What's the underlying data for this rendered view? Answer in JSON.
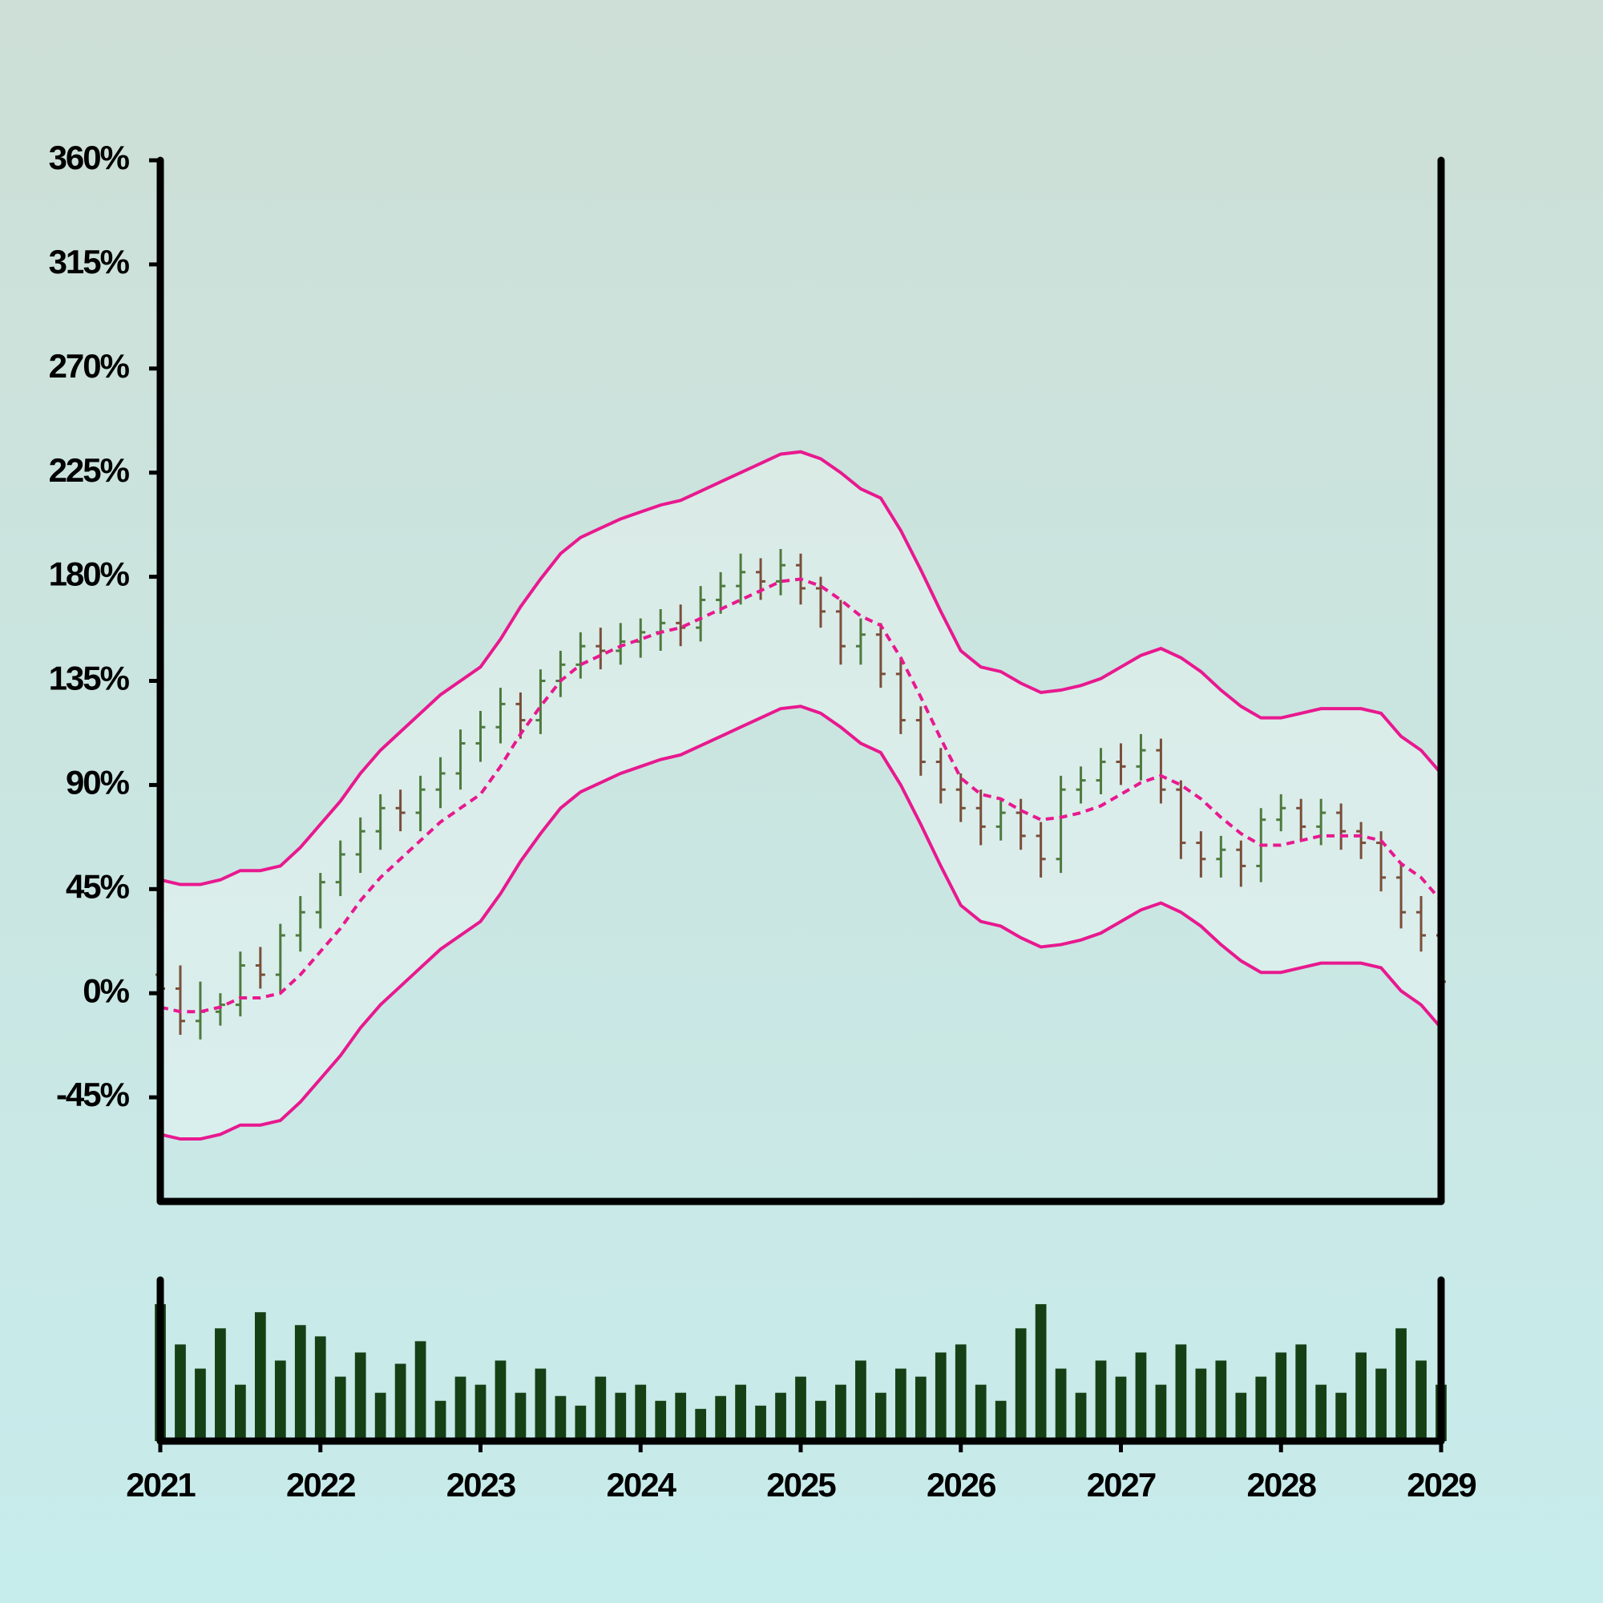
{
  "chart_data": {
    "type": "ohlc",
    "x": [
      2021,
      2021.125,
      2021.25,
      2021.375,
      2021.5,
      2021.625,
      2021.75,
      2021.875,
      2022,
      2022.125,
      2022.25,
      2022.375,
      2022.5,
      2022.625,
      2022.75,
      2022.875,
      2023,
      2023.125,
      2023.25,
      2023.375,
      2023.5,
      2023.625,
      2023.75,
      2023.875,
      2024,
      2024.125,
      2024.25,
      2024.375,
      2024.5,
      2024.625,
      2024.75,
      2024.875,
      2025,
      2025.125,
      2025.25,
      2025.375,
      2025.5,
      2025.625,
      2025.75,
      2025.875,
      2026,
      2026.125,
      2026.25,
      2026.375,
      2026.5,
      2026.625,
      2026.75,
      2026.875,
      2027,
      2027.125,
      2027.25,
      2027.375,
      2027.5,
      2027.625,
      2027.75,
      2027.875,
      2028,
      2028.125,
      2028.25,
      2028.375,
      2028.5,
      2028.625,
      2028.75,
      2028.875,
      2029
    ],
    "open": [
      8,
      2,
      -12,
      -8,
      -5,
      12,
      8,
      25,
      35,
      48,
      60,
      70,
      80,
      78,
      88,
      95,
      108,
      115,
      125,
      118,
      135,
      142,
      150,
      148,
      152,
      156,
      160,
      158,
      170,
      176,
      182,
      178,
      185,
      175,
      165,
      150,
      155,
      138,
      118,
      100,
      88,
      80,
      72,
      78,
      68,
      58,
      88,
      92,
      100,
      98,
      105,
      88,
      65,
      58,
      62,
      55,
      75,
      80,
      72,
      78,
      70,
      65,
      50,
      35,
      25
    ],
    "high": [
      16,
      12,
      5,
      0,
      18,
      20,
      30,
      42,
      52,
      66,
      76,
      86,
      88,
      94,
      102,
      114,
      122,
      132,
      130,
      140,
      148,
      156,
      158,
      160,
      162,
      166,
      168,
      176,
      182,
      190,
      188,
      192,
      190,
      180,
      170,
      162,
      160,
      145,
      124,
      106,
      95,
      88,
      84,
      84,
      74,
      94,
      98,
      106,
      108,
      112,
      110,
      92,
      70,
      68,
      66,
      80,
      86,
      84,
      84,
      82,
      74,
      70,
      56,
      42,
      30
    ],
    "low": [
      -6,
      -18,
      -20,
      -14,
      -10,
      2,
      0,
      18,
      28,
      42,
      52,
      62,
      70,
      70,
      80,
      88,
      100,
      108,
      110,
      112,
      128,
      136,
      140,
      142,
      145,
      148,
      150,
      152,
      164,
      168,
      170,
      172,
      168,
      158,
      142,
      142,
      132,
      112,
      94,
      82,
      74,
      64,
      66,
      62,
      50,
      52,
      82,
      86,
      90,
      92,
      82,
      58,
      50,
      50,
      46,
      48,
      70,
      66,
      64,
      62,
      58,
      44,
      28,
      18,
      -2
    ],
    "close": [
      2,
      -12,
      -8,
      -5,
      12,
      8,
      25,
      35,
      48,
      60,
      70,
      80,
      78,
      88,
      95,
      108,
      115,
      125,
      118,
      135,
      142,
      150,
      148,
      152,
      156,
      160,
      158,
      170,
      176,
      182,
      178,
      185,
      175,
      165,
      150,
      155,
      138,
      118,
      100,
      88,
      80,
      72,
      78,
      68,
      58,
      88,
      92,
      100,
      98,
      105,
      88,
      65,
      58,
      62,
      55,
      75,
      80,
      72,
      78,
      70,
      65,
      50,
      35,
      25,
      5
    ],
    "upper_band": [
      49,
      47,
      47,
      49,
      53,
      53,
      55,
      63,
      73,
      83,
      95,
      105,
      113,
      121,
      129,
      135,
      141,
      153,
      167,
      179,
      190,
      197,
      201,
      205,
      208,
      211,
      213,
      217,
      221,
      225,
      229,
      233,
      234,
      231,
      225,
      218,
      214,
      200,
      183,
      165,
      148,
      141,
      139,
      134,
      130,
      131,
      133,
      136,
      141,
      146,
      149,
      145,
      139,
      131,
      124,
      119,
      119,
      121,
      123,
      123,
      123,
      121,
      111,
      105,
      95
    ],
    "middle_band": [
      -6,
      -8,
      -8,
      -6,
      -2,
      -2,
      0,
      8,
      18,
      28,
      40,
      50,
      58,
      66,
      74,
      80,
      86,
      98,
      112,
      124,
      135,
      142,
      146,
      150,
      153,
      156,
      158,
      162,
      166,
      170,
      174,
      178,
      179,
      176,
      170,
      163,
      159,
      145,
      128,
      110,
      93,
      86,
      84,
      79,
      75,
      76,
      78,
      81,
      86,
      91,
      94,
      90,
      84,
      76,
      69,
      64,
      64,
      66,
      68,
      68,
      68,
      66,
      56,
      50,
      40
    ],
    "lower_band": [
      -61,
      -63,
      -63,
      -61,
      -57,
      -57,
      -55,
      -47,
      -37,
      -27,
      -15,
      -5,
      3,
      11,
      19,
      25,
      31,
      43,
      57,
      69,
      80,
      87,
      91,
      95,
      98,
      101,
      103,
      107,
      111,
      115,
      119,
      123,
      124,
      121,
      115,
      108,
      104,
      90,
      73,
      55,
      38,
      31,
      29,
      24,
      20,
      21,
      23,
      26,
      31,
      36,
      39,
      35,
      29,
      21,
      14,
      9,
      9,
      11,
      13,
      13,
      13,
      11,
      1,
      -5,
      -15
    ],
    "volume": [
      85,
      60,
      45,
      70,
      35,
      80,
      50,
      72,
      65,
      40,
      55,
      30,
      48,
      62,
      25,
      40,
      35,
      50,
      30,
      45,
      28,
      22,
      40,
      30,
      35,
      25,
      30,
      20,
      28,
      35,
      22,
      30,
      40,
      25,
      35,
      50,
      30,
      45,
      40,
      55,
      60,
      35,
      25,
      70,
      85,
      45,
      30,
      50,
      40,
      55,
      35,
      60,
      45,
      50,
      30,
      40,
      55,
      60,
      35,
      30,
      55,
      45,
      70,
      50,
      35
    ],
    "up_color": "#4e7a3e",
    "down_color": "#7a4e3a",
    "band_color": "#e8198f",
    "volume_color": "#154015",
    "xlim": [
      2021,
      2029
    ],
    "xticks": [
      2021,
      2022,
      2023,
      2024,
      2025,
      2026,
      2027,
      2028,
      2029
    ],
    "ylim": [
      -90,
      360
    ],
    "yticks": [
      {
        "value": -45,
        "label": "-45%"
      },
      {
        "value": 0,
        "label": "0%"
      },
      {
        "value": 45,
        "label": "45%"
      },
      {
        "value": 90,
        "label": "90%"
      },
      {
        "value": 135,
        "label": "135%"
      },
      {
        "value": 180,
        "label": "180%"
      },
      {
        "value": 225,
        "label": "225%"
      },
      {
        "value": 270,
        "label": "270%"
      },
      {
        "value": 315,
        "label": "315%"
      },
      {
        "value": 360,
        "label": "360%"
      }
    ],
    "volume_lim": [
      0,
      100
    ]
  }
}
